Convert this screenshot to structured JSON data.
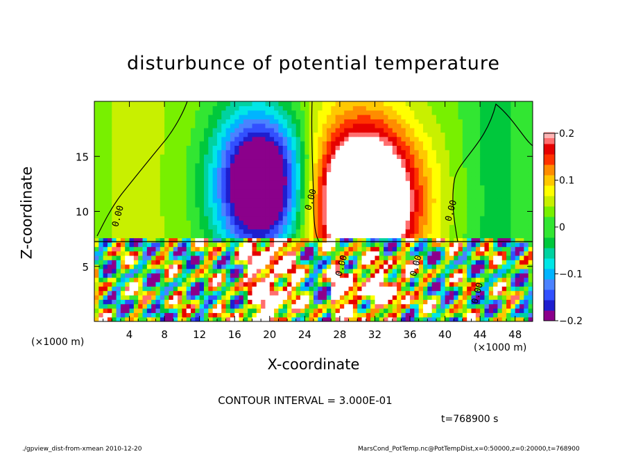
{
  "chart_data": {
    "type": "heatmap",
    "title": "disturbunce of potential temperature",
    "xlabel": "X-coordinate",
    "ylabel": "Z-coordinate",
    "x_unit_left": "(×1000 m)",
    "x_unit_right": "(×1000 m)",
    "xlim": [
      0,
      50
    ],
    "ylim": [
      0,
      20
    ],
    "x_ticks": [
      4,
      8,
      12,
      16,
      20,
      24,
      28,
      32,
      36,
      40,
      44,
      48
    ],
    "y_ticks": [
      5,
      10,
      15
    ],
    "colorbar": {
      "range": [
        -0.2,
        0.2
      ],
      "ticks": [
        {
          "value": 0.2,
          "label": "0.2"
        },
        {
          "value": 0.1,
          "label": "0.1"
        },
        {
          "value": 0,
          "label": "0"
        },
        {
          "value": -0.1,
          "label": "−0.1"
        },
        {
          "value": -0.2,
          "label": "−0.2"
        }
      ]
    },
    "contour_labels": [
      {
        "x": 3.0,
        "z": 9.5,
        "label": "0.00"
      },
      {
        "x": 25.0,
        "z": 11.0,
        "label": "0.00"
      },
      {
        "x": 41.0,
        "z": 10.0,
        "label": "0.00"
      },
      {
        "x": 28.5,
        "z": 5.0,
        "label": "0.00"
      },
      {
        "x": 37.0,
        "z": 5.0,
        "label": "0.00"
      },
      {
        "x": 44.0,
        "z": 2.5,
        "label": "0.00"
      }
    ],
    "contour_interval": "CONTOUR INTERVAL = 3.000E-01",
    "time": "t=768900 s"
  },
  "footer": {
    "left": "./gpview_dist-from-xmean  2010-12-20",
    "right": "MarsCond_PotTemp.nc@PotTempDist,x=0:50000,z=0:20000,t=768900"
  },
  "colors": {
    "palette": [
      "#8b008b",
      "#1e1ecf",
      "#3250ff",
      "#4b82ff",
      "#00b4ff",
      "#00e6e6",
      "#00d2a0",
      "#00c83c",
      "#32e632",
      "#78f000",
      "#c8f000",
      "#ffff00",
      "#ffc800",
      "#ff8c00",
      "#ff3200",
      "#e60000",
      "#ff6e6e",
      "#ffb4b4",
      "#ffffff"
    ]
  }
}
